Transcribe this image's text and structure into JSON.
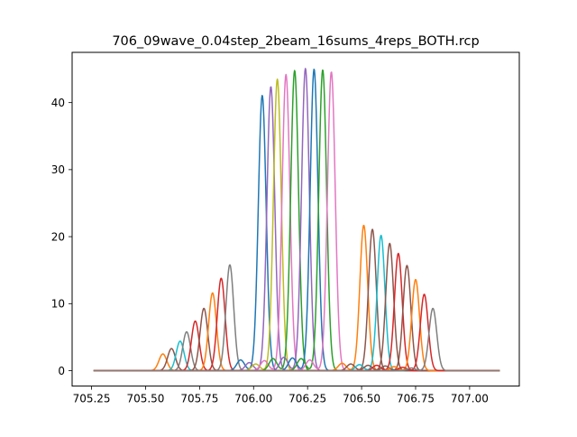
{
  "chart_data": {
    "type": "line",
    "title": "706_09wave_0.04step_2beam_16sums_4reps_BOTH.rcp",
    "xlabel": "",
    "ylabel": "",
    "xlim": [
      705.16,
      707.23
    ],
    "ylim": [
      -2.3,
      47.5
    ],
    "xticks": [
      705.25,
      705.5,
      705.75,
      706.0,
      706.25,
      706.5,
      706.75,
      707.0
    ],
    "xtick_labels": [
      "705.25",
      "705.50",
      "705.75",
      "706.00",
      "706.25",
      "706.50",
      "706.75",
      "707.00"
    ],
    "yticks": [
      0,
      10,
      20,
      30,
      40
    ],
    "ytick_labels": [
      "0",
      "10",
      "20",
      "30",
      "40"
    ],
    "grid": false,
    "legend": "none",
    "baseline_x_range": [
      705.26,
      707.14
    ],
    "palette": [
      "#1f77b4",
      "#ff7f0e",
      "#2ca02c",
      "#d62728",
      "#9467bd",
      "#8c564b",
      "#e377c2",
      "#7f7f7f",
      "#bcbd22",
      "#17becf"
    ],
    "peak_width": 0.018,
    "series": [
      {
        "color": "#ff7f0e",
        "peaks": [
          [
            705.58,
            2.5
          ]
        ]
      },
      {
        "color": "#8c564b",
        "peaks": [
          [
            705.62,
            3.3
          ]
        ]
      },
      {
        "color": "#17becf",
        "peaks": [
          [
            705.66,
            4.4
          ]
        ]
      },
      {
        "color": "#7f7f7f",
        "peaks": [
          [
            705.69,
            5.8
          ]
        ]
      },
      {
        "color": "#d62728",
        "peaks": [
          [
            705.73,
            7.4
          ]
        ]
      },
      {
        "color": "#8c564b",
        "peaks": [
          [
            705.77,
            9.3
          ]
        ]
      },
      {
        "color": "#ff7f0e",
        "peaks": [
          [
            705.81,
            11.6
          ]
        ]
      },
      {
        "color": "#d62728",
        "peaks": [
          [
            705.85,
            13.8
          ]
        ]
      },
      {
        "color": "#7f7f7f",
        "peaks": [
          [
            705.89,
            15.8
          ]
        ]
      },
      {
        "color": "#1f77b4",
        "peaks": [
          [
            706.04,
            41.1
          ],
          [
            705.94,
            1.6
          ]
        ]
      },
      {
        "color": "#9467bd",
        "peaks": [
          [
            706.08,
            42.4
          ],
          [
            705.98,
            1.2
          ]
        ]
      },
      {
        "color": "#bcbd22",
        "peaks": [
          [
            706.11,
            43.5
          ],
          [
            706.01,
            1.0
          ]
        ]
      },
      {
        "color": "#e377c2",
        "peaks": [
          [
            706.15,
            44.2
          ],
          [
            706.05,
            1.5
          ]
        ]
      },
      {
        "color": "#2ca02c",
        "peaks": [
          [
            706.19,
            44.8
          ],
          [
            706.09,
            1.8
          ]
        ]
      },
      {
        "color": "#9467bd",
        "peaks": [
          [
            706.24,
            45.1
          ],
          [
            706.14,
            2.0
          ]
        ]
      },
      {
        "color": "#1f77b4",
        "peaks": [
          [
            706.28,
            45.0
          ],
          [
            706.18,
            1.9
          ]
        ]
      },
      {
        "color": "#2ca02c",
        "peaks": [
          [
            706.32,
            44.9
          ],
          [
            706.22,
            1.8
          ]
        ]
      },
      {
        "color": "#e377c2",
        "peaks": [
          [
            706.36,
            44.6
          ],
          [
            706.26,
            1.6
          ]
        ]
      },
      {
        "color": "#ff7f0e",
        "peaks": [
          [
            706.51,
            21.7
          ],
          [
            706.41,
            1.1
          ]
        ]
      },
      {
        "color": "#8c564b",
        "peaks": [
          [
            706.55,
            21.1
          ],
          [
            706.45,
            1.0
          ]
        ]
      },
      {
        "color": "#17becf",
        "peaks": [
          [
            706.59,
            20.2
          ],
          [
            706.49,
            0.9
          ]
        ]
      },
      {
        "color": "#8c564b",
        "peaks": [
          [
            706.63,
            19.0
          ],
          [
            706.53,
            0.8
          ]
        ]
      },
      {
        "color": "#d62728",
        "peaks": [
          [
            706.67,
            17.5
          ],
          [
            706.57,
            0.8
          ]
        ]
      },
      {
        "color": "#8c564b",
        "peaks": [
          [
            706.71,
            15.7
          ],
          [
            706.61,
            0.7
          ]
        ]
      },
      {
        "color": "#ff7f0e",
        "peaks": [
          [
            706.75,
            13.6
          ],
          [
            706.65,
            0.6
          ]
        ]
      },
      {
        "color": "#d62728",
        "peaks": [
          [
            706.79,
            11.4
          ],
          [
            706.69,
            0.5
          ]
        ]
      },
      {
        "color": "#7f7f7f",
        "peaks": [
          [
            706.83,
            9.3
          ],
          [
            706.73,
            0.4
          ]
        ]
      }
    ]
  }
}
